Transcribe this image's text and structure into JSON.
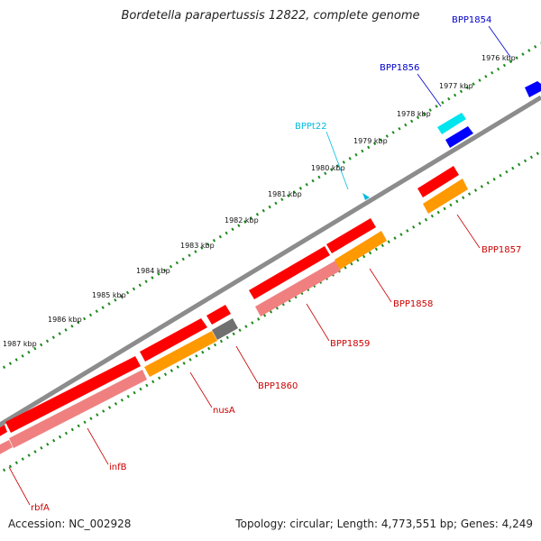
{
  "header": {
    "title": "Bordetella parapertussis 12822, complete genome"
  },
  "footer": {
    "accession": "Accession: NC_002928",
    "stats": "Topology: circular; Length: 4,773,551 bp; Genes: 4,249"
  },
  "scale": {
    "ticks": [
      "1976 kbp",
      "1977 kbp",
      "1978 kbp",
      "1979 kbp",
      "1980 kbp",
      "1981 kbp",
      "1982 kbp",
      "1983 kbp",
      "1984 kbp",
      "1985 kbp",
      "1986 kbp",
      "1987 kbp"
    ]
  },
  "genes": [
    {
      "name": "BPP1854",
      "color": "#0000cc"
    },
    {
      "name": "BPP1856",
      "color": "#0000cc"
    },
    {
      "name": "BPPt22",
      "color": "#00bbe0"
    },
    {
      "name": "BPP1857",
      "color": "#cc0000"
    },
    {
      "name": "BPP1858",
      "color": "#cc0000"
    },
    {
      "name": "BPP1859",
      "color": "#cc0000"
    },
    {
      "name": "BPP1860",
      "color": "#cc0000"
    },
    {
      "name": "nusA",
      "color": "#cc0000"
    },
    {
      "name": "infB",
      "color": "#cc0000"
    },
    {
      "name": "rbfA",
      "color": "#cc0000"
    }
  ],
  "colors": {
    "backbone": "#8c8c8c",
    "cds_forward": "#ff0000",
    "cds_shadow": "#f08080",
    "cog_orange": "#ff9900",
    "cog_gray": "#707070",
    "trna": "#00e5ee",
    "trna_dark": "#0000ff",
    "tick_green": "#1a8a1a"
  }
}
